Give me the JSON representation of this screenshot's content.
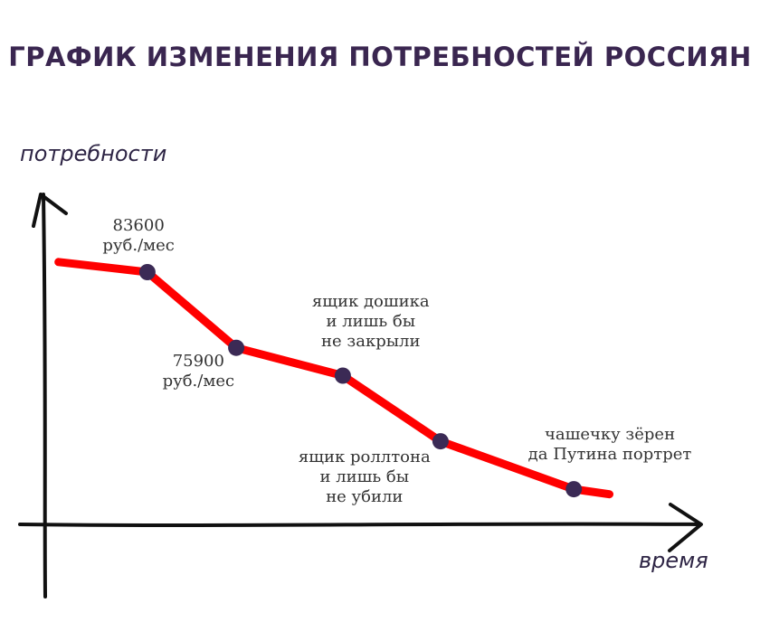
{
  "chart_data": {
    "type": "line",
    "title": "ГРАФИК ИЗМЕНЕНИЯ ПОТРЕБНОСТЕЙ РОССИЯН",
    "xlabel": "время",
    "ylabel": "потребности",
    "grid": false,
    "line_color": "#ff0000",
    "marker_color": "#3b2a55",
    "axis_color": "#111111",
    "x": [
      0,
      1.0,
      2.0,
      3.2,
      4.3,
      5.8,
      6.2
    ],
    "y": [
      10.0,
      9.6,
      6.6,
      5.5,
      2.9,
      1.0,
      0.8
    ],
    "markers": [
      1,
      2,
      3,
      4,
      5
    ],
    "xlim": [
      -0.15,
      7.0
    ],
    "ylim": [
      -0.5,
      12.5
    ],
    "annotations": [
      {
        "point": 1,
        "lines": [
          "83600",
          "руб./мес"
        ]
      },
      {
        "point": 2,
        "lines": [
          "75900",
          "руб./мес"
        ]
      },
      {
        "point": 3,
        "lines": [
          "ящик дошика",
          "и лишь бы",
          "не закрыли"
        ]
      },
      {
        "point": 4,
        "lines": [
          "ящик роллтона",
          "и лишь бы",
          "не убили"
        ]
      },
      {
        "point": 5,
        "lines": [
          "чашечку зёрен",
          "да Путина портрет"
        ]
      }
    ]
  }
}
